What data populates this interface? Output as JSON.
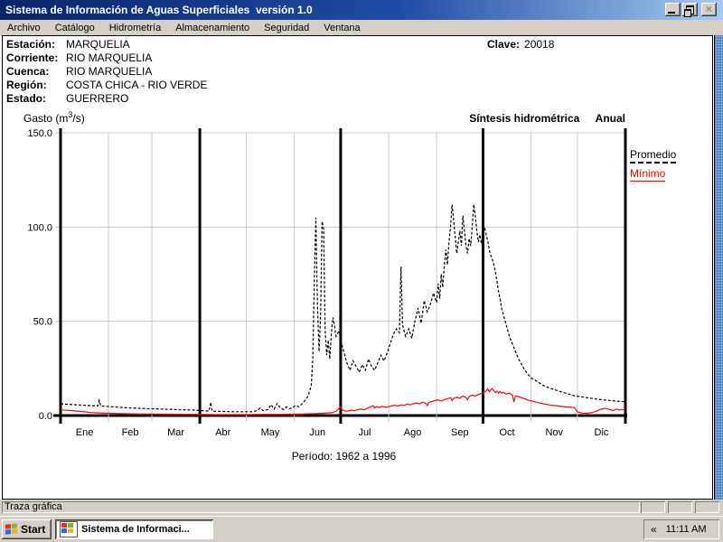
{
  "window": {
    "title": "Sistema de Información de Aguas Superficiales  versión 1.0"
  },
  "menu": {
    "items": [
      "Archivo",
      "Catálogo",
      "Hidrometría",
      "Almacenamiento",
      "Seguridad",
      "Ventana"
    ]
  },
  "station": {
    "rows": [
      {
        "label": "Estación:",
        "value": "MARQUELIA"
      },
      {
        "label": "Corriente:",
        "value": "RIO MARQUELIA"
      },
      {
        "label": "Cuenca:",
        "value": "RIO MARQUELIA"
      },
      {
        "label": "Región:",
        "value": "COSTA CHICA - RIO VERDE"
      },
      {
        "label": "Estado:",
        "value": "GUERRERO"
      }
    ],
    "clave_label": "Clave:",
    "clave_value": "20018"
  },
  "chart": {
    "gasto": {
      "prefix": "Gasto (m",
      "sup": "3",
      "suffix": "/s)"
    },
    "header_title": "Síntesis hidrométrica",
    "header_mode": "Anual",
    "legend": [
      {
        "label": "Promedio",
        "color": "#000000",
        "style": "dashed"
      },
      {
        "label": "Mínimo",
        "color": "#ff0000",
        "style": "solid"
      }
    ],
    "period": "Período:  1962 a 1996"
  },
  "chart_data": {
    "type": "line",
    "title": "Síntesis hidrométrica Anual",
    "ylabel": "Gasto (m3/s)",
    "xlabel": "",
    "ylim": [
      0,
      150
    ],
    "yticks": [
      0,
      50,
      100,
      150
    ],
    "ytick_labels": [
      "0.0",
      "50.0",
      "100.0",
      "150.0"
    ],
    "months": [
      "Ene",
      "Feb",
      "Mar",
      "Abr",
      "May",
      "Jun",
      "Jul",
      "Ago",
      "Sep",
      "Oct",
      "Nov",
      "Dic"
    ],
    "month_start_days": [
      0,
      31,
      59,
      90,
      120,
      151,
      181,
      212,
      243,
      273,
      304,
      334,
      365
    ],
    "grid": true,
    "legend_position": "upper right",
    "period": "1962 a 1996",
    "series": [
      {
        "name": "Promedio",
        "color": "#000000",
        "dash": "3 2",
        "points": [
          [
            0,
            6.2
          ],
          [
            4,
            6.0
          ],
          [
            8,
            5.8
          ],
          [
            12,
            5.6
          ],
          [
            16,
            5.4
          ],
          [
            20,
            5.2
          ],
          [
            24,
            5.1
          ],
          [
            25,
            8.0
          ],
          [
            26,
            5.1
          ],
          [
            31,
            4.8
          ],
          [
            36,
            4.5
          ],
          [
            41,
            4.2
          ],
          [
            46,
            4.0
          ],
          [
            52,
            3.8
          ],
          [
            59,
            3.6
          ],
          [
            66,
            3.4
          ],
          [
            73,
            3.2
          ],
          [
            80,
            3.0
          ],
          [
            86,
            2.9
          ],
          [
            90,
            2.7
          ],
          [
            93,
            2.5
          ],
          [
            96,
            2.4
          ],
          [
            97,
            7.0
          ],
          [
            98,
            2.3
          ],
          [
            102,
            2.2
          ],
          [
            107,
            2.1
          ],
          [
            112,
            2.0
          ],
          [
            118,
            2.0
          ],
          [
            124,
            2.0
          ],
          [
            127,
            2.6
          ],
          [
            129,
            4.0
          ],
          [
            131,
            2.6
          ],
          [
            134,
            3.2
          ],
          [
            136,
            5.8
          ],
          [
            138,
            3.4
          ],
          [
            140,
            6.4
          ],
          [
            142,
            4.0
          ],
          [
            144,
            3.2
          ],
          [
            146,
            4.6
          ],
          [
            148,
            3.6
          ],
          [
            150,
            4.2
          ],
          [
            152,
            5.4
          ],
          [
            154,
            4.6
          ],
          [
            156,
            6.2
          ],
          [
            158,
            8.0
          ],
          [
            160,
            10.5
          ],
          [
            162,
            16.0
          ],
          [
            163,
            30.0
          ],
          [
            164,
            72.0
          ],
          [
            165,
            105.0
          ],
          [
            166,
            60.0
          ],
          [
            167,
            34.0
          ],
          [
            168,
            52.0
          ],
          [
            169,
            103.0
          ],
          [
            170,
            99.0
          ],
          [
            171,
            45.0
          ],
          [
            172,
            32.0
          ],
          [
            173,
            40.0
          ],
          [
            174,
            30.0
          ],
          [
            175,
            44.0
          ],
          [
            176,
            52.0
          ],
          [
            177,
            48.0
          ],
          [
            178,
            42.0
          ],
          [
            180,
            45.0
          ],
          [
            181,
            40.0
          ],
          [
            183,
            34.0
          ],
          [
            185,
            28.0
          ],
          [
            187,
            24.0
          ],
          [
            189,
            29.0
          ],
          [
            191,
            26.0
          ],
          [
            193,
            23.0
          ],
          [
            195,
            27.0
          ],
          [
            197,
            24.0
          ],
          [
            199,
            30.0
          ],
          [
            201,
            26.0
          ],
          [
            203,
            24.0
          ],
          [
            205,
            28.0
          ],
          [
            207,
            32.0
          ],
          [
            209,
            29.0
          ],
          [
            211,
            33.0
          ],
          [
            213,
            38.0
          ],
          [
            215,
            43.0
          ],
          [
            217,
            46.0
          ],
          [
            219,
            44.0
          ],
          [
            220,
            79.0
          ],
          [
            221,
            48.0
          ],
          [
            223,
            42.0
          ],
          [
            225,
            46.0
          ],
          [
            227,
            41.0
          ],
          [
            229,
            50.0
          ],
          [
            231,
            57.0
          ],
          [
            233,
            49.0
          ],
          [
            235,
            61.0
          ],
          [
            237,
            55.0
          ],
          [
            239,
            59.0
          ],
          [
            241,
            65.0
          ],
          [
            243,
            60.0
          ],
          [
            244,
            70.0
          ],
          [
            245,
            62.0
          ],
          [
            246,
            75.0
          ],
          [
            247,
            68.0
          ],
          [
            248,
            80.0
          ],
          [
            249,
            88.0
          ],
          [
            250,
            80.0
          ],
          [
            251,
            92.0
          ],
          [
            252,
            100.0
          ],
          [
            253,
            112.0
          ],
          [
            254,
            104.0
          ],
          [
            255,
            95.0
          ],
          [
            256,
            86.0
          ],
          [
            257,
            92.0
          ],
          [
            258,
            98.0
          ],
          [
            259,
            90.0
          ],
          [
            260,
            106.0
          ],
          [
            261,
            98.0
          ],
          [
            262,
            90.0
          ],
          [
            263,
            86.0
          ],
          [
            264,
            94.0
          ],
          [
            265,
            90.0
          ],
          [
            266,
            100.0
          ],
          [
            267,
            112.0
          ],
          [
            268,
            106.0
          ],
          [
            269,
            98.0
          ],
          [
            270,
            92.0
          ],
          [
            271,
            96.0
          ],
          [
            272,
            91.0
          ],
          [
            273,
            98.0
          ],
          [
            274,
            100.0
          ],
          [
            275,
            96.0
          ],
          [
            276,
            93.0
          ],
          [
            277,
            88.0
          ],
          [
            278,
            85.0
          ],
          [
            279,
            83.0
          ],
          [
            280,
            80.0
          ],
          [
            281,
            76.0
          ],
          [
            282,
            71.0
          ],
          [
            283,
            66.0
          ],
          [
            284,
            62.0
          ],
          [
            285,
            57.0
          ],
          [
            286,
            54.0
          ],
          [
            287,
            51.0
          ],
          [
            288,
            48.0
          ],
          [
            289,
            45.0
          ],
          [
            290,
            42.0
          ],
          [
            292,
            38.0
          ],
          [
            294,
            34.0
          ],
          [
            296,
            30.0
          ],
          [
            298,
            27.0
          ],
          [
            300,
            24.0
          ],
          [
            302,
            22.0
          ],
          [
            304,
            20.0
          ],
          [
            308,
            18.0
          ],
          [
            312,
            16.0
          ],
          [
            316,
            14.5
          ],
          [
            320,
            13.5
          ],
          [
            324,
            12.5
          ],
          [
            328,
            11.5
          ],
          [
            332,
            10.5
          ],
          [
            336,
            10.0
          ],
          [
            340,
            9.5
          ],
          [
            344,
            9.0
          ],
          [
            348,
            8.6
          ],
          [
            352,
            8.2
          ],
          [
            356,
            7.9
          ],
          [
            360,
            7.6
          ],
          [
            365,
            7.3
          ]
        ]
      },
      {
        "name": "Mínimo",
        "color": "#ff0000",
        "dash": null,
        "points": [
          [
            0,
            3.0
          ],
          [
            4,
            2.8
          ],
          [
            8,
            2.6
          ],
          [
            12,
            2.2
          ],
          [
            16,
            1.9
          ],
          [
            20,
            1.6
          ],
          [
            25,
            1.4
          ],
          [
            31,
            1.2
          ],
          [
            38,
            1.0
          ],
          [
            45,
            0.9
          ],
          [
            52,
            0.8
          ],
          [
            59,
            0.8
          ],
          [
            70,
            0.7
          ],
          [
            80,
            0.6
          ],
          [
            90,
            0.6
          ],
          [
            100,
            0.5
          ],
          [
            110,
            0.5
          ],
          [
            120,
            0.5
          ],
          [
            130,
            0.6
          ],
          [
            140,
            0.6
          ],
          [
            151,
            0.7
          ],
          [
            156,
            0.8
          ],
          [
            160,
            0.9
          ],
          [
            165,
            1.0
          ],
          [
            170,
            1.2
          ],
          [
            175,
            1.5
          ],
          [
            178,
            2.2
          ],
          [
            180,
            3.8
          ],
          [
            181,
            4.6
          ],
          [
            182,
            3.0
          ],
          [
            184,
            2.3
          ],
          [
            186,
            2.5
          ],
          [
            188,
            2.9
          ],
          [
            190,
            2.5
          ],
          [
            192,
            3.1
          ],
          [
            194,
            3.5
          ],
          [
            196,
            3.0
          ],
          [
            198,
            3.7
          ],
          [
            200,
            4.5
          ],
          [
            202,
            5.2
          ],
          [
            203,
            4.0
          ],
          [
            204,
            4.7
          ],
          [
            206,
            4.2
          ],
          [
            208,
            4.9
          ],
          [
            210,
            4.4
          ],
          [
            212,
            4.7
          ],
          [
            214,
            5.1
          ],
          [
            216,
            5.5
          ],
          [
            218,
            5.0
          ],
          [
            220,
            5.7
          ],
          [
            222,
            5.3
          ],
          [
            224,
            6.1
          ],
          [
            226,
            5.6
          ],
          [
            228,
            6.3
          ],
          [
            230,
            6.7
          ],
          [
            232,
            6.2
          ],
          [
            234,
            7.1
          ],
          [
            236,
            6.4
          ],
          [
            237,
            5.2
          ],
          [
            238,
            6.9
          ],
          [
            240,
            7.5
          ],
          [
            242,
            7.9
          ],
          [
            244,
            8.3
          ],
          [
            246,
            7.6
          ],
          [
            248,
            8.5
          ],
          [
            250,
            8.9
          ],
          [
            252,
            9.5
          ],
          [
            253,
            8.0
          ],
          [
            254,
            9.1
          ],
          [
            256,
            9.7
          ],
          [
            258,
            9.2
          ],
          [
            260,
            10.3
          ],
          [
            262,
            9.6
          ],
          [
            263,
            8.4
          ],
          [
            264,
            10.1
          ],
          [
            266,
            10.9
          ],
          [
            268,
            10.3
          ],
          [
            270,
            11.1
          ],
          [
            272,
            11.7
          ],
          [
            273,
            12.1
          ],
          [
            275,
            13.1
          ],
          [
            276,
            14.2
          ],
          [
            277,
            12.6
          ],
          [
            278,
            13.6
          ],
          [
            279,
            14.3
          ],
          [
            280,
            13.0
          ],
          [
            281,
            12.2
          ],
          [
            282,
            12.9
          ],
          [
            283,
            12.0
          ],
          [
            284,
            12.7
          ],
          [
            285,
            11.8
          ],
          [
            286,
            12.3
          ],
          [
            288,
            11.4
          ],
          [
            290,
            11.9
          ],
          [
            292,
            10.8
          ],
          [
            293,
            7.2
          ],
          [
            294,
            10.4
          ],
          [
            296,
            10.0
          ],
          [
            298,
            9.4
          ],
          [
            300,
            8.8
          ],
          [
            302,
            8.2
          ],
          [
            304,
            7.8
          ],
          [
            306,
            7.4
          ],
          [
            308,
            7.0
          ],
          [
            310,
            6.6
          ],
          [
            312,
            6.2
          ],
          [
            314,
            5.9
          ],
          [
            316,
            5.6
          ],
          [
            320,
            5.2
          ],
          [
            324,
            4.8
          ],
          [
            328,
            4.5
          ],
          [
            332,
            4.2
          ],
          [
            334,
            2.0
          ],
          [
            337,
            1.3
          ],
          [
            340,
            1.2
          ],
          [
            343,
            1.5
          ],
          [
            346,
            2.2
          ],
          [
            349,
            3.3
          ],
          [
            352,
            3.8
          ],
          [
            355,
            3.2
          ],
          [
            357,
            2.6
          ],
          [
            359,
            3.4
          ],
          [
            361,
            3.0
          ],
          [
            365,
            3.2
          ]
        ]
      }
    ]
  },
  "status": {
    "text": "Traza gráfica"
  },
  "taskbar": {
    "start_label": "Start",
    "task_label": "Sistema de Informaci...",
    "tray_chevron": "«",
    "clock": "11:11 AM"
  }
}
